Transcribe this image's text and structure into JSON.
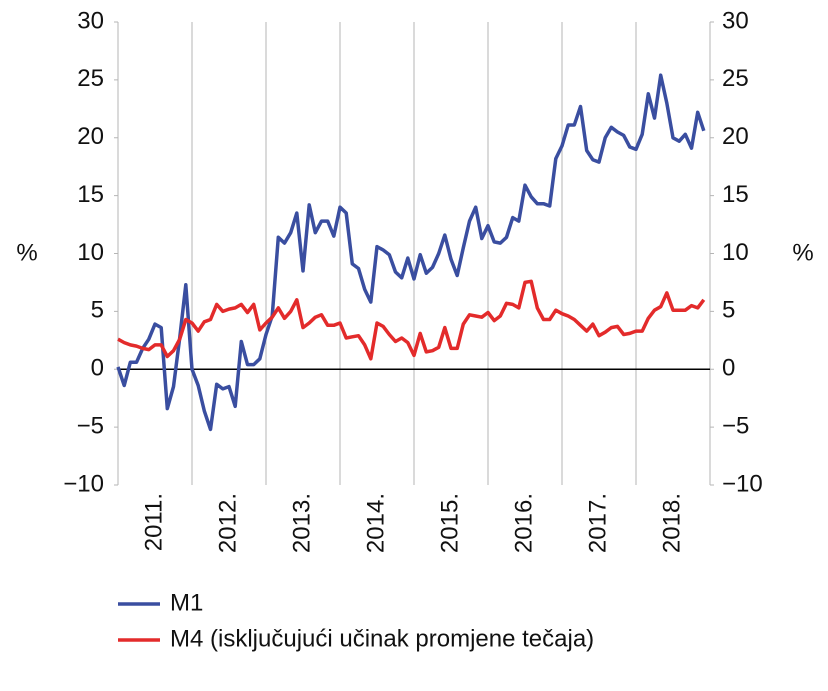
{
  "chart_data": {
    "type": "line",
    "ylabel": "%",
    "y2label": "%",
    "categories": [
      "2011.",
      "2012.",
      "2013.",
      "2014.",
      "2015.",
      "2016.",
      "2017.",
      "2018."
    ],
    "ylim": [
      -10,
      30
    ],
    "yticks": [
      {
        "value": -10,
        "label": "−10"
      },
      {
        "value": -5,
        "label": "−5"
      },
      0,
      5,
      10,
      15,
      20,
      25,
      30
    ],
    "y2lim": [
      -10,
      30
    ],
    "y2ticks": [
      {
        "value": -10,
        "label": "−10"
      },
      {
        "value": -5,
        "label": "−5"
      },
      0,
      5,
      10,
      15,
      20,
      25,
      30
    ],
    "grid": "x",
    "legend": "bottom",
    "series": [
      {
        "name": "M1",
        "color": "#3a4ea0",
        "values": [
          [
            0.2,
            -1.4,
            0.6,
            0.6,
            1.8,
            2.6,
            3.9,
            3.6,
            -3.4,
            -1.5,
            2.7,
            7.3
          ],
          [
            0,
            -1.4,
            -3.6,
            -5.2,
            -1.3,
            -1.7,
            -1.5,
            -3.2,
            2.4,
            0.4,
            0.4,
            0.9
          ],
          [
            3.0,
            4.6,
            11.4,
            10.9,
            11.8,
            13.5,
            8.5,
            14.2,
            11.8,
            12.8,
            12.8,
            11.5
          ],
          [
            14.0,
            13.5,
            9.1,
            8.7,
            6.9,
            5.8,
            10.6,
            10.3,
            9.9,
            8.4,
            7.9,
            9.6
          ],
          [
            7.8,
            9.9,
            8.3,
            8.8,
            10.0,
            11.6,
            9.5,
            8.1,
            10.5,
            12.8,
            14.0,
            11.3
          ],
          [
            12.4,
            11.0,
            10.9,
            11.4,
            13.1,
            12.8,
            15.9,
            14.9,
            14.3,
            14.3,
            14.1,
            18.2
          ],
          [
            19.3,
            21.1,
            21.1,
            22.7,
            18.9,
            18.1,
            17.9,
            20.0,
            20.9,
            20.5,
            20.2,
            19.2
          ],
          [
            19.0,
            20.3,
            23.8,
            21.7,
            25.4,
            23.0,
            20.0,
            19.7,
            20.3,
            19.1,
            22.2,
            20.6
          ]
        ]
      },
      {
        "name": "M4 (isključujući učinak promjene tečaja)",
        "color": "#e32b2b",
        "values": [
          [
            2.6,
            2.3,
            2.1,
            2.0,
            1.8,
            1.7,
            2.1,
            2.1,
            1.1,
            1.6,
            2.6,
            4.3
          ],
          [
            4.0,
            3.3,
            4.1,
            4.3,
            5.6,
            5.0,
            5.2,
            5.3,
            5.6,
            4.9,
            5.6,
            3.4
          ],
          [
            4.0,
            4.5,
            5.3,
            4.4,
            5.0,
            6.0,
            3.6,
            4.0,
            4.5,
            4.7,
            3.8,
            3.8
          ],
          [
            4.0,
            2.7,
            2.8,
            2.9,
            2.1,
            0.9,
            4.0,
            3.7,
            3.0,
            2.4,
            2.7,
            2.3
          ],
          [
            1.2,
            3.1,
            1.5,
            1.6,
            1.9,
            3.6,
            1.8,
            1.8,
            3.9,
            4.7,
            4.6,
            4.5
          ],
          [
            4.9,
            4.2,
            4.6,
            5.7,
            5.6,
            5.3,
            7.5,
            7.6,
            5.3,
            4.3,
            4.3,
            5.1
          ],
          [
            4.8,
            4.6,
            4.3,
            3.8,
            3.3,
            3.9,
            2.9,
            3.2,
            3.6,
            3.7,
            3.0,
            3.1
          ],
          [
            3.3,
            3.3,
            4.4,
            5.1,
            5.4,
            6.6,
            5.1,
            5.1,
            5.1,
            5.5,
            5.3,
            6.0
          ]
        ]
      }
    ]
  }
}
